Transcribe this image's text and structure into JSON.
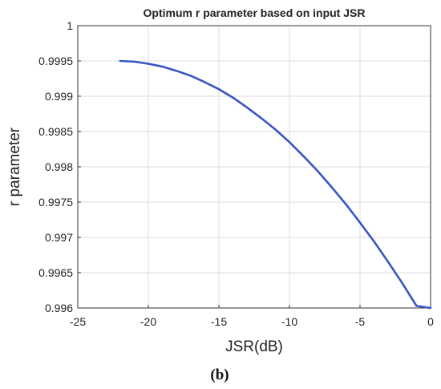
{
  "chart_data": {
    "type": "line",
    "title": "Optimum r parameter based on input JSR",
    "xlabel": "JSR(dB)",
    "ylabel": "r parameter",
    "xlim": [
      -25,
      0
    ],
    "ylim": [
      0.996,
      1
    ],
    "xticks": [
      -25,
      -20,
      -15,
      -10,
      -5,
      0
    ],
    "xtick_labels": [
      "-25",
      "-20",
      "-15",
      "-10",
      "-5",
      "0"
    ],
    "yticks": [
      0.996,
      0.9965,
      0.997,
      0.9975,
      0.998,
      0.9985,
      0.999,
      0.9995,
      1
    ],
    "ytick_labels": [
      "0.996",
      "0.9965",
      "0.997",
      "0.9975",
      "0.998",
      "0.9985",
      "0.999",
      "0.9995",
      "1"
    ],
    "grid": true,
    "series": [
      {
        "color": "#3a55c4",
        "x": [
          -22,
          -21,
          -20,
          -19,
          -18,
          -17,
          -16,
          -15,
          -14,
          -13,
          -12,
          -11,
          -10,
          -9,
          -8,
          -7,
          -6,
          -5,
          -4,
          -3,
          -2,
          -1,
          0
        ],
        "y": [
          0.9995,
          0.99949,
          0.99946,
          0.99942,
          0.99936,
          0.99929,
          0.9992,
          0.9991,
          0.99898,
          0.99884,
          0.99869,
          0.99853,
          0.99835,
          0.99815,
          0.99794,
          0.99771,
          0.99747,
          0.99721,
          0.99694,
          0.99665,
          0.99635,
          0.99603,
          0.996
        ]
      }
    ]
  },
  "caption": "(b)"
}
